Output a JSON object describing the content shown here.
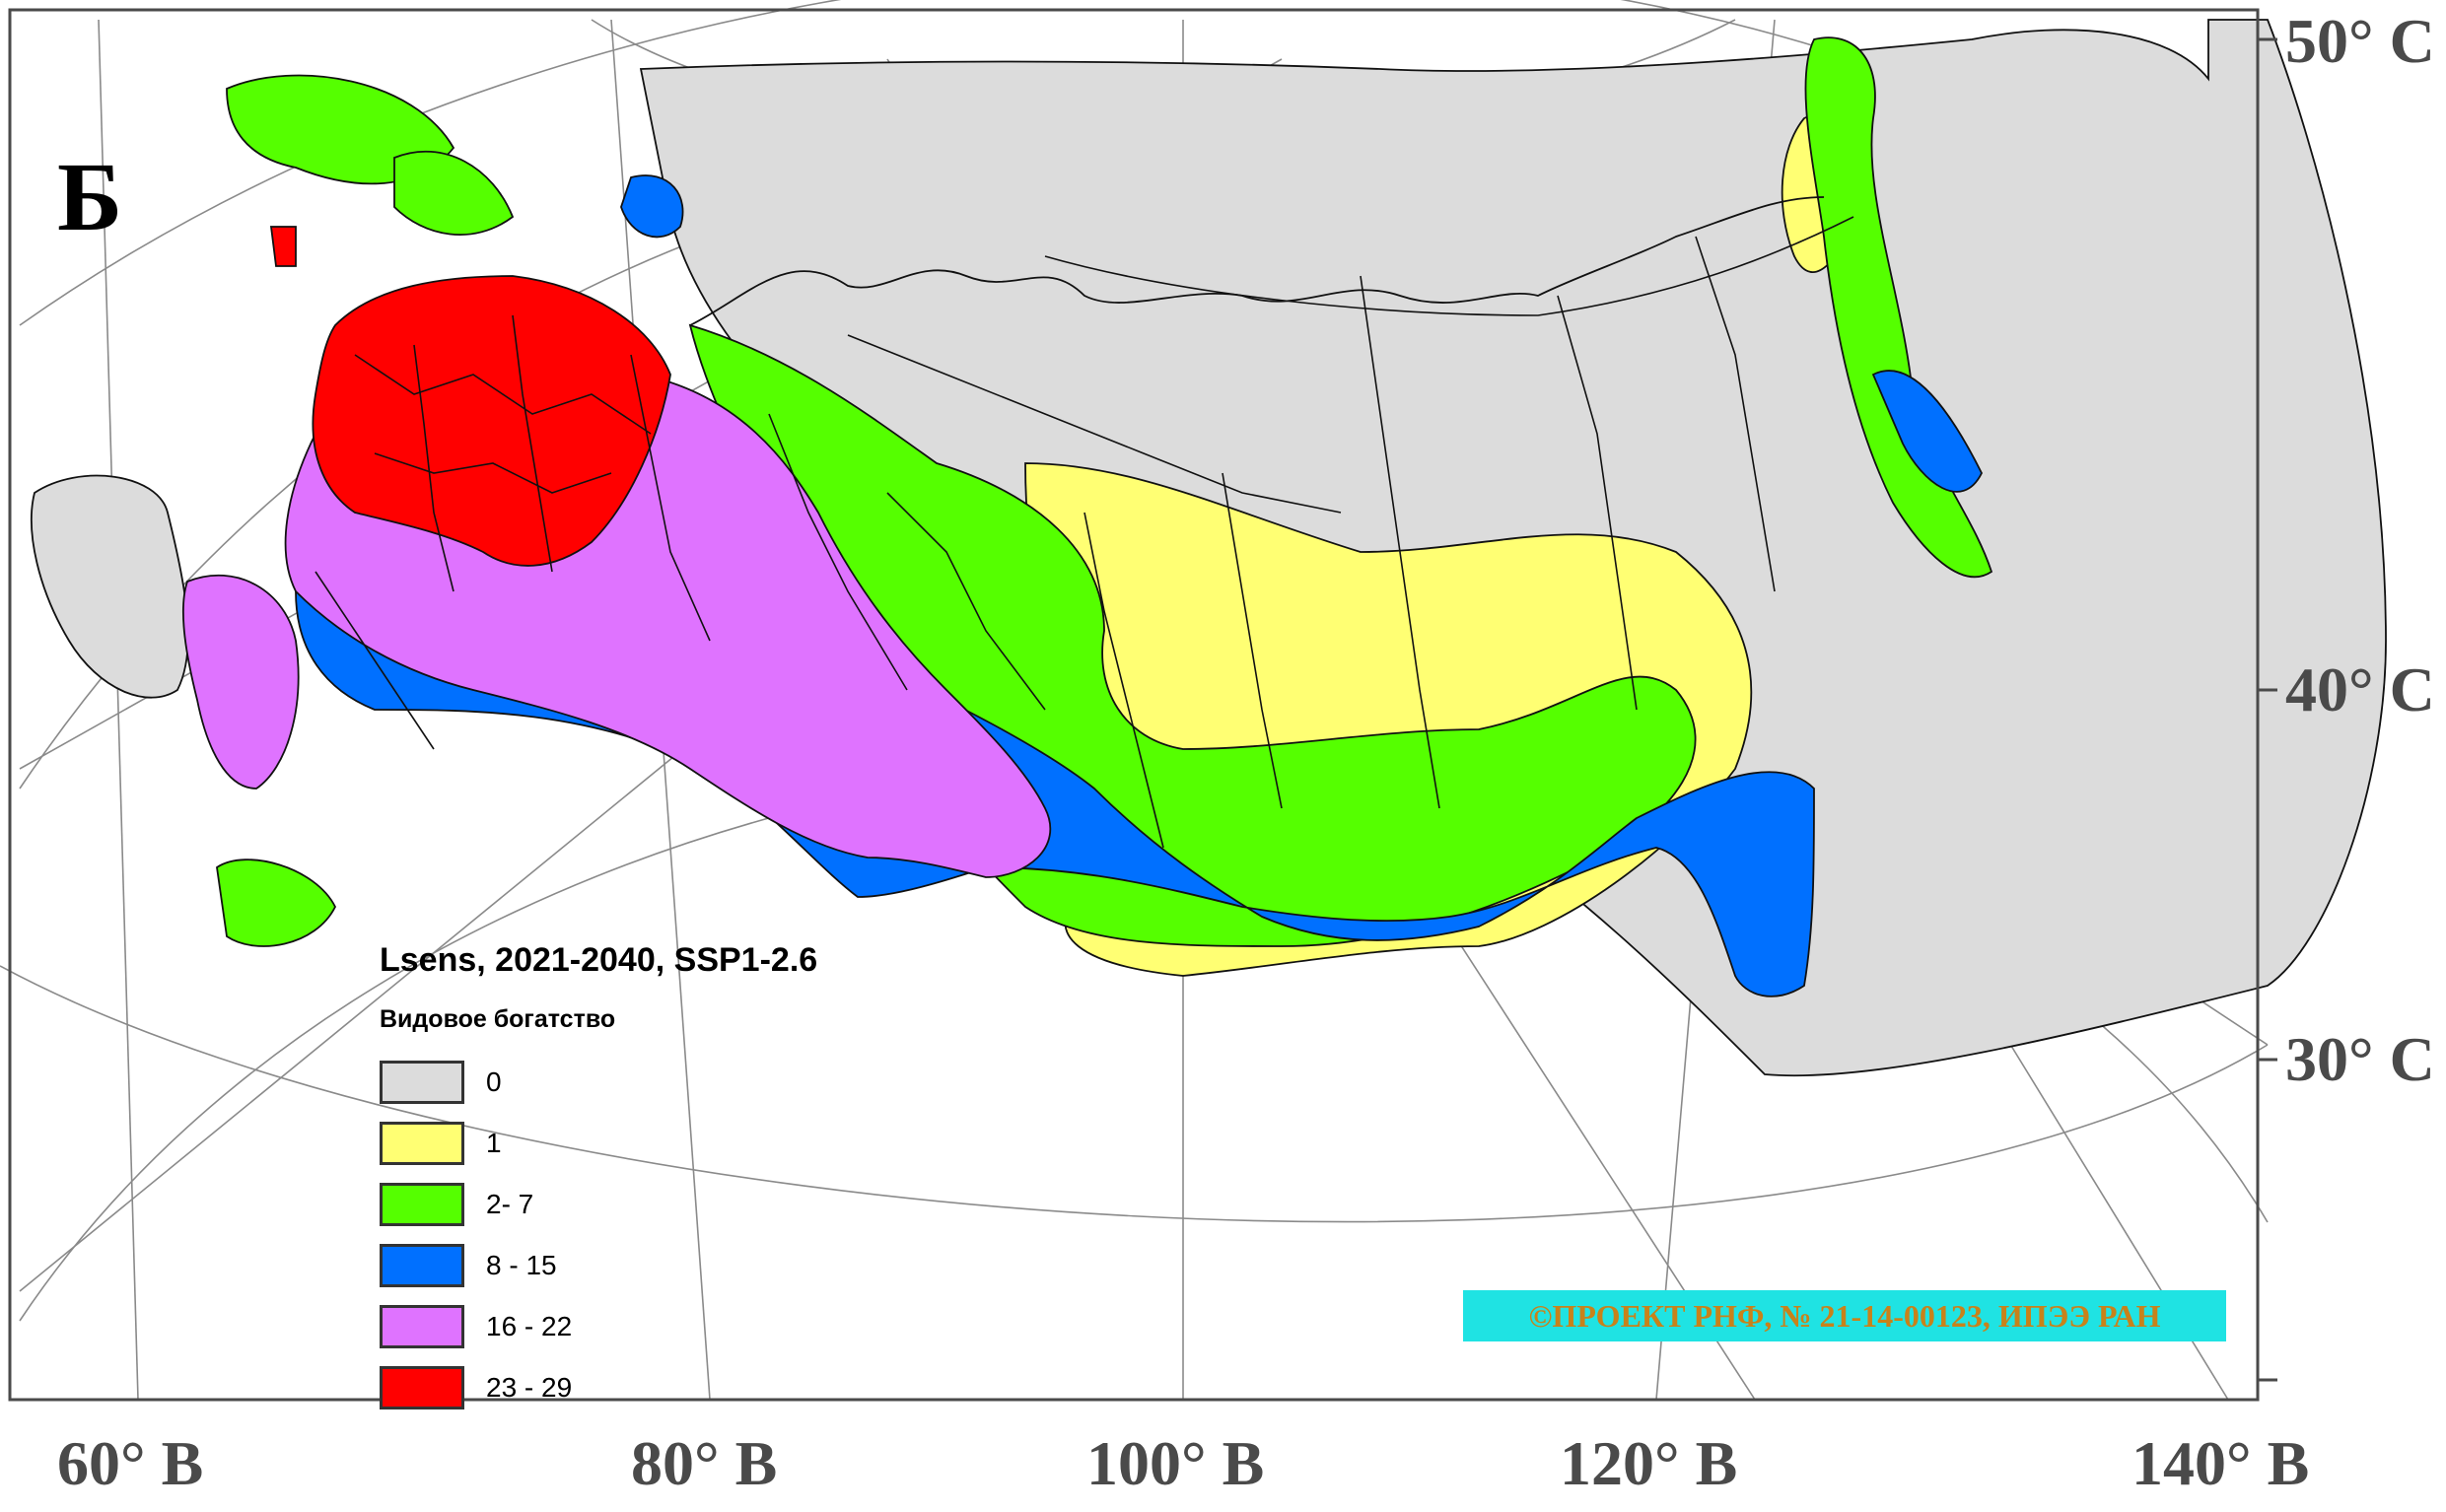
{
  "panel_letter": "Б",
  "legend": {
    "title": "Lsens, 2021-2040, SSP1-2.6",
    "subtitle": "Видовое богатство",
    "items": [
      {
        "label": "0",
        "color": "#dcdcdc"
      },
      {
        "label": "1",
        "color": "#ffff73"
      },
      {
        "label": "2- 7",
        "color": "#55ff00"
      },
      {
        "label": "8 - 15",
        "color": "#0070ff"
      },
      {
        "label": "16 - 22",
        "color": "#df73ff"
      },
      {
        "label": "23 - 29",
        "color": "#ff0000"
      }
    ]
  },
  "longitude_labels": [
    "60° В",
    "80° В",
    "100° В",
    "120° В",
    "140° В"
  ],
  "latitude_labels": [
    "50° С",
    "40° С",
    "30° С"
  ],
  "copyright": "©ПРОЕКТ РНФ, № 21-14-00123, ИПЭЭ РАН"
}
